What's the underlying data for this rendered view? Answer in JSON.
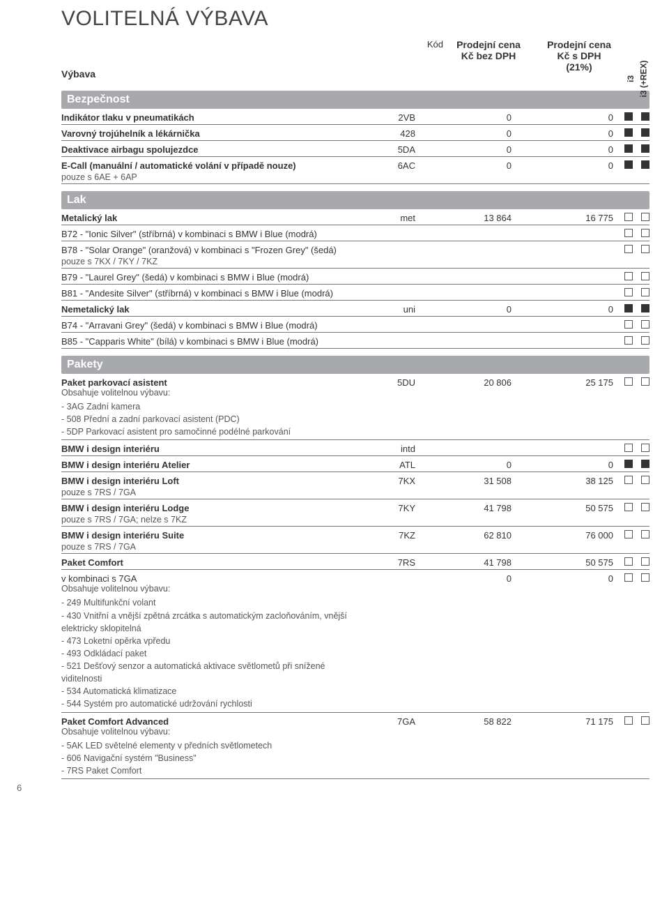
{
  "title": "VOLITELNÁ VÝBAVA",
  "head": {
    "label": "Výbava",
    "code": "Kód",
    "p1a": "Prodejní cena",
    "p1b": "Kč bez DPH",
    "p2a": "Prodejní cena",
    "p2b": "Kč s DPH",
    "p2c": "(21%)",
    "v1": "i3",
    "v2": "i3 (+REX)"
  },
  "sec_bez": "Bezpečnost",
  "bez": [
    {
      "n": "Indikátor tlaku v pneumatikách",
      "c": "2VB",
      "p1": "0",
      "p2": "0",
      "m": "ff"
    },
    {
      "n": "Varovný trojúhelník a lékárnička",
      "c": "428",
      "p1": "0",
      "p2": "0",
      "m": "ff"
    },
    {
      "n": "Deaktivace airbagu spolujezdce",
      "c": "5DA",
      "p1": "0",
      "p2": "0",
      "m": "ff"
    },
    {
      "n": "E-Call (manuální / automatické volání v případě nouze)",
      "sub": "pouze s 6AE + 6AP",
      "c": "6AC",
      "p1": "0",
      "p2": "0",
      "m": "ff"
    }
  ],
  "sec_lak": "Lak",
  "lak": [
    {
      "n": "Metalický lak",
      "bold": true,
      "c": "met",
      "p1": "13 864",
      "p2": "16 775",
      "m": "ee"
    },
    {
      "n": "B72 - \"Ionic Silver\" (stříbrná) v kombinaci s BMW i Blue (modrá)",
      "m": "ee"
    },
    {
      "n": "B78 - \"Solar Orange\" (oranžová) v kombinaci s \"Frozen Grey\" (šedá)",
      "sub": "pouze s 7KX / 7KY / 7KZ",
      "m": "ee"
    },
    {
      "n": "B79 - \"Laurel Grey\" (šedá) v kombinaci s BMW i Blue (modrá)",
      "m": "ee"
    },
    {
      "n": "B81 - \"Andesite Silver\" (stříbrná) v kombinaci s BMW i Blue (modrá)",
      "m": "ee"
    },
    {
      "n": "Nemetalický lak",
      "bold": true,
      "c": "uni",
      "p1": "0",
      "p2": "0",
      "m": "ff"
    },
    {
      "n": "B74 - \"Arravani Grey\" (šedá) v kombinaci s BMW i Blue (modrá)",
      "m": "ee"
    },
    {
      "n": "B85 - \"Capparis White\" (bílá) v kombinaci s BMW i Blue (modrá)",
      "m": "ee"
    }
  ],
  "sec_pak": "Pakety",
  "pak_park": {
    "n": "Paket parkovací asistent",
    "c": "5DU",
    "p1": "20 806",
    "p2": "25 175",
    "m": "ee",
    "lead": "Obsahuje volitelnou výbavu:",
    "items": [
      "- 3AG Zadní kamera",
      "- 508 Přední a zadní parkovací asistent (PDC)",
      "- 5DP Parkovací asistent pro samočinné podélné parkování"
    ]
  },
  "intd": {
    "n": "BMW i design interiéru",
    "c": "intd",
    "m": "ee"
  },
  "atl": {
    "n": "BMW i design interiéru Atelier",
    "c": "ATL",
    "p1": "0",
    "p2": "0",
    "m": "ff"
  },
  "loft": {
    "n": "BMW i design interiéru Loft",
    "sub": "pouze s 7RS / 7GA",
    "c": "7KX",
    "p1": "31 508",
    "p2": "38 125",
    "m": "ee"
  },
  "lodge": {
    "n": "BMW i design interiéru Lodge",
    "sub": "pouze s 7RS / 7GA; nelze s 7KZ",
    "c": "7KY",
    "p1": "41 798",
    "p2": "50 575",
    "m": "ee"
  },
  "suite": {
    "n": "BMW i design interiéru Suite",
    "sub": "pouze s 7RS / 7GA",
    "c": "7KZ",
    "p1": "62 810",
    "p2": "76 000",
    "m": "ee"
  },
  "comfort": {
    "n": "Paket Comfort",
    "c": "7RS",
    "p1": "41 798",
    "p2": "50 575",
    "m": "ee"
  },
  "comfort_sub": {
    "n": "v kombinaci s 7GA",
    "p1": "0",
    "p2": "0",
    "m": "ee",
    "lead": "Obsahuje volitelnou výbavu:",
    "items": [
      "- 249 Multifunkční volant",
      "- 430 Vnitřní a vnější zpětná zrcátka s automatickým zacloňováním, vnější elektricky sklopitelná",
      "- 473 Loketní opěrka vpředu",
      "- 493 Odkládací paket",
      "- 521 Dešťový senzor a automatická aktivace světlometů při snížené viditelnosti",
      "- 534 Automatická klimatizace",
      "- 544 Systém pro automatické udržování rychlosti"
    ]
  },
  "comfort_adv": {
    "n": "Paket Comfort Advanced",
    "c": "7GA",
    "p1": "58 822",
    "p2": "71 175",
    "m": "ee",
    "lead": "Obsahuje volitelnou výbavu:",
    "items": [
      "- 5AK LED světelné elementy v předních světlometech",
      "- 606 Navigační systém \"Business\"",
      "- 7RS Paket Comfort"
    ]
  },
  "pagenum": "6"
}
